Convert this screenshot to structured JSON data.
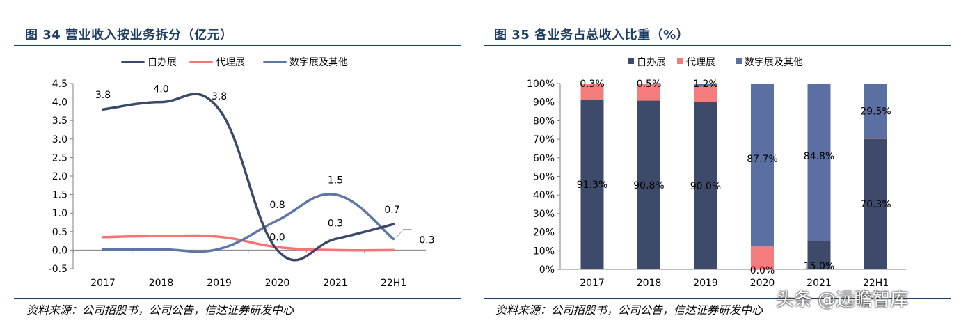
{
  "left": {
    "title": "图 34  营业收入按业务拆分（亿元）",
    "source": "资料来源：公司招股书，公司公告，信达证券研发中心"
  },
  "right": {
    "title": "图 35  各业务占总收入比重（%）",
    "source": "资料来源：公司招股书，公司公告，信达证券研发中心"
  },
  "watermark": "头条 @远瞻智库",
  "chart_data": [
    {
      "type": "line",
      "title": "图 34  营业收入按业务拆分（亿元）",
      "categories": [
        "2017",
        "2018",
        "2019",
        "2020",
        "2021",
        "22H1"
      ],
      "ylim": [
        -0.5,
        4.5
      ],
      "yticks": [
        "-0.5",
        "0.0",
        "0.5",
        "1.0",
        "1.5",
        "2.0",
        "2.5",
        "3.0",
        "3.5",
        "4.0",
        "4.5"
      ],
      "legend_position": "top",
      "grid": false,
      "smooth": true,
      "series": [
        {
          "name": "自办展",
          "color": "#3b4a68",
          "values": [
            3.8,
            4.0,
            3.8,
            0.0,
            0.3,
            0.7
          ],
          "labels": [
            "3.8",
            "4.0",
            "3.8",
            "0.0",
            "0.3",
            "0.7"
          ]
        },
        {
          "name": "代理展",
          "color": "#f47474",
          "values": [
            0.35,
            0.38,
            0.36,
            0.08,
            0.0,
            0.0
          ],
          "labels": []
        },
        {
          "name": "数字展及其他",
          "color": "#5e76a6",
          "values": [
            0.02,
            0.02,
            0.03,
            0.8,
            1.5,
            0.3
          ],
          "labels": [
            "",
            "",
            "",
            "0.8",
            "1.5",
            "0.3"
          ]
        }
      ]
    },
    {
      "type": "bar",
      "stacked": true,
      "title": "图 35  各业务占总收入比重（%）",
      "categories": [
        "2017",
        "2018",
        "2019",
        "2020",
        "2021",
        "22H1"
      ],
      "ylim": [
        0,
        100
      ],
      "yticks": [
        "0%",
        "10%",
        "20%",
        "30%",
        "40%",
        "50%",
        "60%",
        "70%",
        "80%",
        "90%",
        "100%"
      ],
      "legend_position": "top",
      "grid": false,
      "series": [
        {
          "name": "自办展",
          "color": "#3d4a69",
          "values": [
            91.3,
            90.8,
            90.0,
            0.0,
            15.0,
            70.3
          ],
          "labels": [
            "91.3%",
            "90.8%",
            "90.0%",
            "0.0%",
            "15.0%",
            "70.3%"
          ]
        },
        {
          "name": "代理展",
          "color": "#f47c7c",
          "values": [
            8.4,
            8.7,
            8.8,
            12.3,
            0.2,
            0.2
          ],
          "labels": []
        },
        {
          "name": "数字展及其他",
          "color": "#5b6fa3",
          "values": [
            0.3,
            0.5,
            1.2,
            87.7,
            84.8,
            29.5
          ],
          "labels": [
            "0.3%",
            "0.5%",
            "1.2%",
            "87.7%",
            "84.8%",
            "29.5%"
          ]
        }
      ]
    }
  ]
}
